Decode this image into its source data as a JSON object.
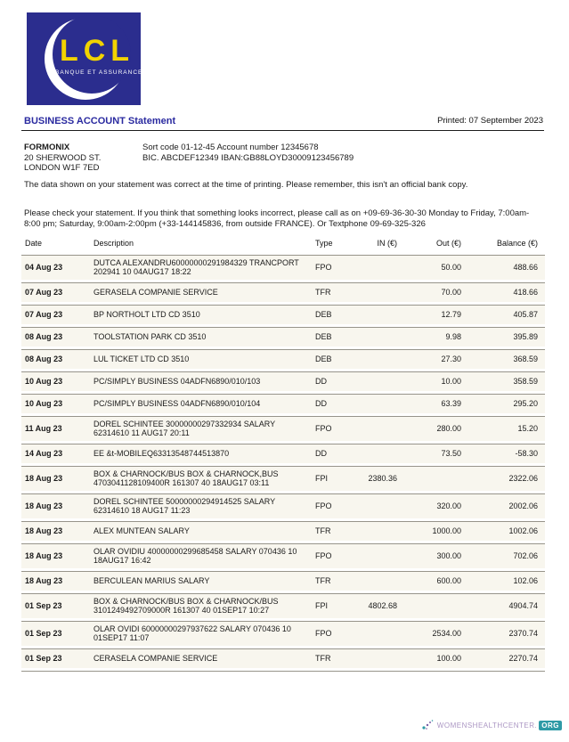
{
  "brand": {
    "name": "LCL",
    "tagline": "BANQUE ET ASSURANCE",
    "logo_bg": "#2b2d8e",
    "logo_letter_color": "#f2d300"
  },
  "header": {
    "title": "BUSINESS ACCOUNT Statement",
    "printed": "Printed: 07 September 2023"
  },
  "customer": {
    "name": "FORMONIX",
    "address_line1": "20 SHERWOOD ST.",
    "address_line2": "LONDON W1F 7ED"
  },
  "account": {
    "line1": "Sort code 01-12-45  Account number 12345678",
    "line2": "BIC. ABCDEF12349   IBAN:GB88LOYD30009123456789"
  },
  "notes": {
    "disclaimer": "The data shown on your statement was correct at the time of printing. Please remember, this isn't an official bank copy.",
    "help": "Please check your statement. If you think that something looks incorrect, please call as on +09-69-36-30-30 Monday to Friday, 7:00am-8:00 pm; Saturday, 9:00am-2:00pm (+33-144145836, from outside FRANCE). Or Textphone 09-69-325-326"
  },
  "table": {
    "columns": [
      "Date",
      "Description",
      "Type",
      "IN (€)",
      "Out (€)",
      "Balance (€)"
    ],
    "transactions": [
      {
        "date": "04 Aug 23",
        "description": "DUTCA ALEXANDRU60000000291984329 TRANCPORT 202941 10 04AUG17 18:22",
        "type": "FPO",
        "in": "",
        "out": "50.00",
        "balance": "488.66"
      },
      {
        "date": "07 Aug 23",
        "description": "GERASELA COMPANIE SERVICE",
        "type": "TFR",
        "in": "",
        "out": "70.00",
        "balance": "418.66"
      },
      {
        "date": "07 Aug 23",
        "description": "BP NORTHOLT LTD CD 3510",
        "type": "DEB",
        "in": "",
        "out": "12.79",
        "balance": "405.87"
      },
      {
        "date": "08 Aug 23",
        "description": "TOOLSTATION PARK CD 3510",
        "type": "DEB",
        "in": "",
        "out": "9.98",
        "balance": "395.89"
      },
      {
        "date": "08 Aug 23",
        "description": "LUL TICKET LTD CD 3510",
        "type": "DEB",
        "in": "",
        "out": "27.30",
        "balance": "368.59"
      },
      {
        "date": "10 Aug 23",
        "description": "PC/SIMPLY BUSINESS 04ADFN6890/010/103",
        "type": "DD",
        "in": "",
        "out": "10.00",
        "balance": "358.59"
      },
      {
        "date": "10 Aug 23",
        "description": "PC/SIMPLY BUSINESS 04ADFN6890/010/104",
        "type": "DD",
        "in": "",
        "out": "63.39",
        "balance": "295.20"
      },
      {
        "date": "11 Aug 23",
        "description": "DOREL SCHINTEE 30000000297332934 SALARY 62314610 11 AUG17 20:11",
        "type": "FPO",
        "in": "",
        "out": "280.00",
        "balance": "15.20"
      },
      {
        "date": "14 Aug 23",
        "description": "EE &t-MOBILEQ63313548744513870",
        "type": "DD",
        "in": "",
        "out": "73.50",
        "balance": "-58.30"
      },
      {
        "date": "18 Aug 23",
        "description": "BOX & CHARNOCK/BUS BOX & CHARNOCK,BUS 4703041128109400R 161307 40 18AUG17 03:11",
        "type": "FPI",
        "in": "2380.36",
        "out": "",
        "balance": "2322.06"
      },
      {
        "date": "18 Aug 23",
        "description": "DOREL SCHINTEE 50000000294914525 SALARY 62314610 18 AUG17 11:23",
        "type": "FPO",
        "in": "",
        "out": "320.00",
        "balance": "2002.06"
      },
      {
        "date": "18 Aug 23",
        "description": "ALEX MUNTEAN SALARY",
        "type": "TFR",
        "in": "",
        "out": "1000.00",
        "balance": "1002.06"
      },
      {
        "date": "18 Aug 23",
        "description": "OLAR OVIDIU 40000000299685458 SALARY 070436 10 18AUG17 16:42",
        "type": "FPO",
        "in": "",
        "out": "300.00",
        "balance": "702.06"
      },
      {
        "date": "18 Aug 23",
        "description": "BERCULEAN MARIUS SALARY",
        "type": "TFR",
        "in": "",
        "out": "600.00",
        "balance": "102.06"
      },
      {
        "date": "01 Sep 23",
        "description": "BOX & CHARNOCK/BUS BOX & CHARNOCK/BUS 3101249492709000R 161307 40 01SEP17 10:27",
        "type": "FPI",
        "in": "4802.68",
        "out": "",
        "balance": "4904.74"
      },
      {
        "date": "01 Sep 23",
        "description": "OLAR OVIDI 60000000297937622 SALARY 070436 10 01SEP17 11:07",
        "type": "FPO",
        "in": "",
        "out": "2534.00",
        "balance": "2370.74"
      },
      {
        "date": "01 Sep 23",
        "description": "CERASELA COMPANIE SERVICE",
        "type": "TFR",
        "in": "",
        "out": "100.00",
        "balance": "2270.74"
      }
    ]
  },
  "footer": {
    "site": "WOMENSHEALTHCENTER.",
    "suffix": "ORG",
    "purple": "#ab96c3",
    "teal": "#2e9aa6"
  }
}
